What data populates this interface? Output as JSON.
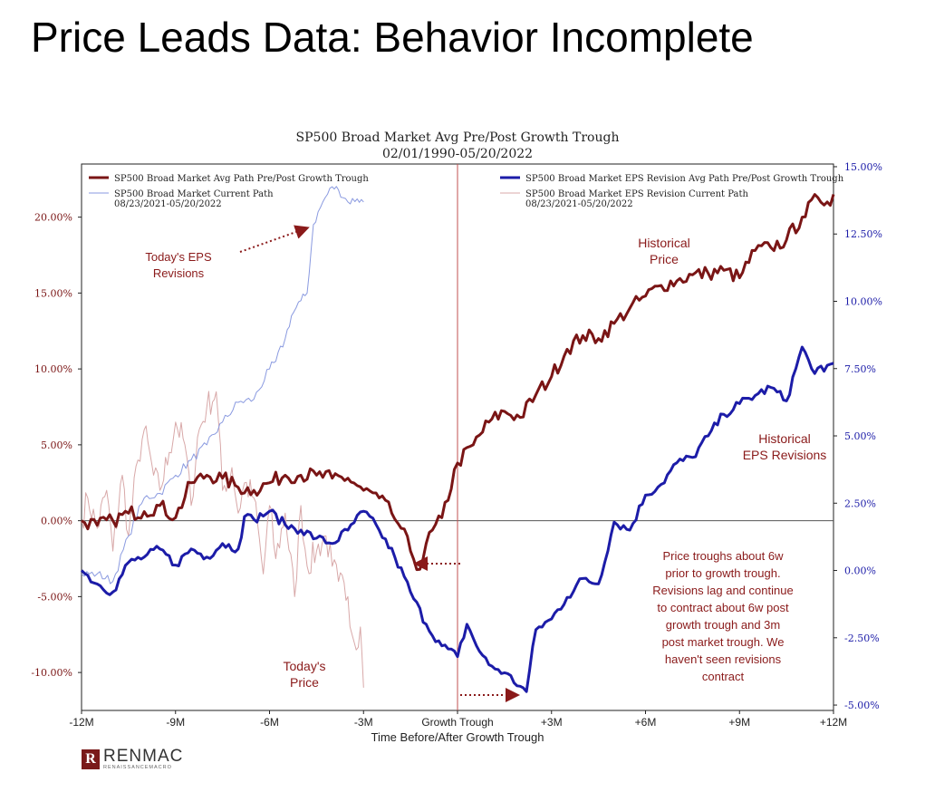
{
  "slide_title": "Price Leads Data: Behavior Incomplete",
  "chart_data": {
    "type": "line",
    "title": "SP500 Broad Market Avg Pre/Post Growth Trough",
    "subtitle": "02/01/1990-05/20/2022",
    "xlabel": "Time Before/After Growth Trough",
    "x_range": [
      -12,
      12
    ],
    "x_ticks": [
      {
        "value": -12,
        "label": "-12M"
      },
      {
        "value": -9,
        "label": "-9M"
      },
      {
        "value": -6,
        "label": "-6M"
      },
      {
        "value": -3,
        "label": "-3M"
      },
      {
        "value": 0,
        "label": "Growth Trough"
      },
      {
        "value": 3,
        "label": "+3M"
      },
      {
        "value": 6,
        "label": "+6M"
      },
      {
        "value": 9,
        "label": "+9M"
      },
      {
        "value": 12,
        "label": "+12M"
      }
    ],
    "y_left_range": [
      -12.5,
      23.5
    ],
    "y_left_ticks": [
      {
        "value": -10,
        "label": "-10.00%"
      },
      {
        "value": -5,
        "label": "-5.00%"
      },
      {
        "value": 0,
        "label": "0.00%"
      },
      {
        "value": 5,
        "label": "5.00%"
      },
      {
        "value": 10,
        "label": "10.00%"
      },
      {
        "value": 15,
        "label": "15.00%"
      },
      {
        "value": 20,
        "label": "20.00%"
      }
    ],
    "y_right_range": [
      -5.2,
      15.1
    ],
    "y_right_ticks": [
      {
        "value": -5,
        "label": "-5.00%"
      },
      {
        "value": -2.5,
        "label": "-2.50%"
      },
      {
        "value": 0,
        "label": "0.00%"
      },
      {
        "value": 2.5,
        "label": "2.50%"
      },
      {
        "value": 5,
        "label": "5.00%"
      },
      {
        "value": 7.5,
        "label": "7.50%"
      },
      {
        "value": 10,
        "label": "10.00%"
      },
      {
        "value": 12.5,
        "label": "12.50%"
      },
      {
        "value": 15,
        "label": "15.00%"
      }
    ],
    "legend_left": [
      {
        "name": "SP500 Broad Market Avg Path Pre/Post Growth Trough",
        "color": "#7a1515",
        "weight": "thick"
      },
      {
        "name": "SP500 Broad Market Current Path",
        "sub": "08/23/2021-05/20/2022",
        "color": "#8a9ae0",
        "weight": "thin"
      }
    ],
    "legend_right": [
      {
        "name": "SP500 Broad Market EPS Revision Avg Path Pre/Post Growth Trough",
        "color": "#1c1ca8",
        "weight": "thick"
      },
      {
        "name": "SP500 Broad Market EPS Revision Current Path",
        "sub": "08/23/2021-05/20/2022",
        "color": "#d8a8a8",
        "weight": "thin"
      }
    ],
    "series": [
      {
        "name": "SP500 Broad Market Avg Path Pre/Post Growth Trough",
        "axis": "left",
        "color": "#7a1515",
        "x": [
          -12,
          -11.5,
          -11,
          -10.5,
          -10,
          -9.5,
          -9,
          -8.5,
          -8,
          -7.5,
          -7,
          -6.5,
          -6,
          -5.5,
          -5,
          -4.5,
          -4,
          -3.5,
          -3,
          -2.5,
          -2.1,
          -1.8,
          -1.5,
          -1.2,
          -1,
          -0.5,
          0,
          0.5,
          1,
          1.5,
          2,
          2.5,
          3,
          3.5,
          4,
          4.5,
          5,
          5.5,
          6,
          6.5,
          7,
          7.5,
          8,
          8.5,
          9,
          9.5,
          10,
          10.5,
          11,
          11.5,
          11.8,
          12
        ],
        "y": [
          0,
          -0.3,
          0,
          0.5,
          0.6,
          1.0,
          0.2,
          2.5,
          3.0,
          2.8,
          2.2,
          2.0,
          2.5,
          3.0,
          3.0,
          3.0,
          2.8,
          2.8,
          2.0,
          1.5,
          0.5,
          -0.5,
          -2.0,
          -3.2,
          -1.5,
          0.2,
          3.8,
          5.0,
          6.5,
          7.2,
          6.8,
          8.3,
          9.5,
          11.3,
          12.2,
          12.0,
          13.0,
          14.0,
          14.8,
          15.5,
          15.8,
          16.2,
          16.3,
          16.5,
          16.0,
          17.8,
          18.0,
          18.5,
          20.0,
          21.3,
          21.0,
          21.5
        ]
      },
      {
        "name": "SP500 Broad Market EPS Revision Avg Path Pre/Post Growth Trough",
        "axis": "right",
        "color": "#1c1ca8",
        "x": [
          -12,
          -11.5,
          -11,
          -10.5,
          -10,
          -9.5,
          -9,
          -8.5,
          -8,
          -7.5,
          -7,
          -6.8,
          -6.5,
          -6,
          -5.5,
          -5,
          -4.5,
          -4,
          -3.5,
          -3,
          -2.5,
          -2,
          -1.5,
          -1,
          -0.5,
          0,
          0.3,
          0.7,
          1,
          1.5,
          2,
          2.2,
          2.5,
          3,
          3.5,
          4,
          4.5,
          5,
          5.5,
          6,
          6.5,
          7,
          7.5,
          8,
          8.5,
          9,
          9.5,
          10,
          10.5,
          11,
          11.3,
          11.7,
          12
        ],
        "y": [
          0,
          -0.5,
          -0.8,
          0.3,
          0.5,
          0.8,
          0.2,
          0.8,
          0.5,
          1.0,
          0.8,
          2.0,
          1.9,
          2.2,
          1.7,
          1.5,
          1.2,
          1.0,
          1.5,
          2.2,
          1.5,
          0.5,
          -0.8,
          -2.0,
          -2.8,
          -3.2,
          -2.0,
          -3.0,
          -3.5,
          -3.8,
          -4.3,
          -4.5,
          -2.2,
          -1.8,
          -1.0,
          -0.3,
          -0.5,
          1.8,
          1.5,
          2.8,
          3.2,
          4.0,
          4.2,
          5.0,
          5.8,
          6.2,
          6.5,
          6.8,
          6.3,
          8.3,
          7.5,
          7.4,
          7.7
        ]
      },
      {
        "name": "SP500 Broad Market Current Path",
        "axis": "left",
        "color": "#8a9ae0",
        "x": [
          -12,
          -11.5,
          -11,
          -10.5,
          -10,
          -9.5,
          -9,
          -8.5,
          -8,
          -7.5,
          -7,
          -6.5,
          -6,
          -5.8,
          -5.5,
          -5.3,
          -5,
          -4.8,
          -4.6,
          -4.3,
          -4.0,
          -3.8,
          -3.5,
          -3.2,
          -3.0
        ],
        "y": [
          -3.5,
          -3.5,
          -4.0,
          -1.0,
          1.5,
          1.8,
          3.0,
          4.0,
          5.0,
          6.5,
          7.8,
          8.0,
          10.0,
          10.5,
          12.0,
          13.5,
          14.5,
          15.0,
          19.5,
          21.0,
          22.0,
          21.8,
          21.0,
          21.2,
          21.0
        ]
      },
      {
        "name": "SP500 Broad Market EPS Revision Current Path",
        "axis": "left",
        "color": "#d8a8a8",
        "x": [
          -12,
          -11.8,
          -11.5,
          -11.2,
          -11,
          -10.7,
          -10.5,
          -10.2,
          -10,
          -9.7,
          -9.5,
          -9.2,
          -9,
          -8.7,
          -8.5,
          -8.3,
          -8,
          -7.7,
          -7.5,
          -7.2,
          -7,
          -6.8,
          -6.5,
          -6.2,
          -6,
          -5.8,
          -5.5,
          -5.2,
          -5,
          -4.8,
          -4.5,
          -4.2,
          -4,
          -3.8,
          -3.5,
          -3.3,
          -3.1,
          -3.0
        ],
        "y": [
          0,
          1.5,
          -0.5,
          2.0,
          -2.0,
          3.0,
          -1.0,
          4.0,
          6.0,
          3.0,
          2.0,
          4.5,
          6.5,
          5.0,
          1.0,
          5.5,
          7.5,
          8.5,
          2.0,
          3.5,
          0.5,
          2.5,
          1.5,
          -3.5,
          1.0,
          -2.5,
          0.5,
          -5.0,
          1.0,
          -3.0,
          -2.0,
          -1.0,
          -3.0,
          -4.0,
          -5.0,
          -8.0,
          -7.0,
          -11.0
        ]
      }
    ],
    "annotations": [
      {
        "text": "Today's EPS Revisions",
        "lines": [
          "Today's EPS",
          "Revisions"
        ],
        "color": "#8a1a1a"
      },
      {
        "text": "Historical Price",
        "lines": [
          "Historical",
          "Price"
        ],
        "color": "#8a1a1a"
      },
      {
        "text": "Historical EPS Revisions",
        "lines": [
          "Historical",
          "EPS Revisions"
        ],
        "color": "#8a1a1a"
      },
      {
        "text": "Today's Price",
        "lines": [
          "Today's",
          "Price"
        ],
        "color": "#8a1a1a"
      },
      {
        "text": "Price troughs about 6w prior to growth trough. Revisions lag and continue to contract about 6w post growth trough and 3m post market trough. We haven't seen revisions contract",
        "lines": [
          "Price troughs about 6w",
          "prior to growth trough.",
          "Revisions lag and continue",
          "to contract about 6w post",
          "growth trough and 3m",
          "post market trough.  We",
          "haven't seen revisions",
          "contract"
        ],
        "color": "#8a1a1a"
      }
    ]
  },
  "logo": {
    "brand": "RENMAC",
    "sub": "RENAISSANCEMACRO",
    "mark": "R"
  }
}
